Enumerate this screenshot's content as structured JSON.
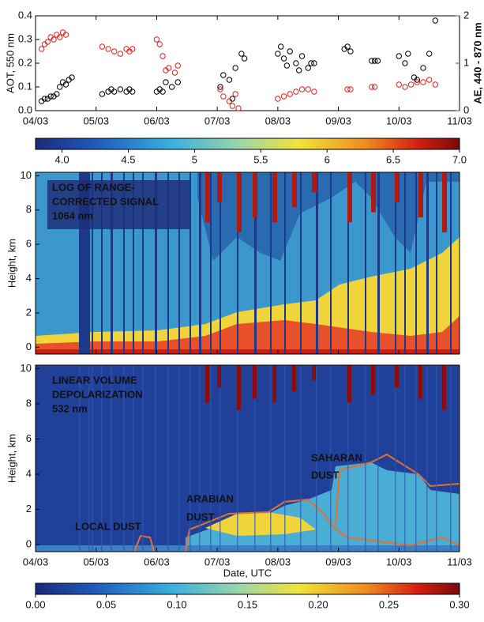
{
  "chart_data": [
    {
      "type": "scatter",
      "ylabel": "AOT, 550 nm",
      "y2label": "AE, 440 - 870 nm",
      "xlim": [
        0,
        7
      ],
      "xticks": [
        {
          "value": 0,
          "label": "04/03"
        },
        {
          "value": 1,
          "label": "05/03"
        },
        {
          "value": 2,
          "label": "06/03"
        },
        {
          "value": 3,
          "label": "07/03"
        },
        {
          "value": 4,
          "label": "08/03"
        },
        {
          "value": 5,
          "label": "09/03"
        },
        {
          "value": 6,
          "label": "10/03"
        },
        {
          "value": 7,
          "label": "11/03"
        }
      ],
      "ylim": [
        0,
        0.4
      ],
      "yticks": [
        {
          "value": 0,
          "label": "0.0"
        },
        0.1,
        0.2,
        0.3,
        0.4
      ],
      "y2lim": [
        0,
        2
      ],
      "y2ticks": [
        0,
        1,
        2
      ],
      "series": [
        {
          "color": "#000000",
          "x": [
            0.1,
            0.15,
            0.2,
            0.25,
            0.3,
            0.35,
            0.4,
            0.45,
            0.5,
            0.55,
            0.6,
            1.1,
            1.2,
            1.25,
            1.3,
            1.4,
            1.5,
            1.55,
            1.6,
            2.0,
            2.05,
            2.1,
            2.15,
            2.25,
            2.35,
            3.05,
            3.1,
            3.2,
            3.25,
            3.3,
            3.4,
            3.45,
            4.0,
            4.05,
            4.1,
            4.15,
            4.2,
            4.3,
            4.35,
            4.4,
            4.5,
            4.55,
            4.6,
            5.1,
            5.15,
            5.2,
            5.55,
            5.6,
            5.65,
            6.0,
            6.1,
            6.15,
            6.25,
            6.3,
            6.4,
            6.5,
            6.6
          ],
          "values": [
            0.04,
            0.05,
            0.05,
            0.06,
            0.06,
            0.07,
            0.1,
            0.12,
            0.11,
            0.13,
            0.14,
            0.07,
            0.08,
            0.09,
            0.08,
            0.09,
            0.08,
            0.09,
            0.08,
            0.08,
            0.09,
            0.08,
            0.12,
            0.1,
            0.12,
            0.1,
            0.15,
            0.13,
            0.05,
            0.18,
            0.24,
            0.22,
            0.24,
            0.27,
            0.22,
            0.19,
            0.25,
            0.2,
            0.17,
            0.23,
            0.18,
            0.2,
            0.2,
            0.26,
            0.27,
            0.25,
            0.21,
            0.21,
            0.21,
            0.23,
            0.2,
            0.24,
            0.14,
            0.13,
            0.18,
            0.24,
            0.38
          ]
        },
        {
          "color": "#e02020",
          "axis": "y2",
          "x": [
            0.1,
            0.15,
            0.2,
            0.25,
            0.3,
            0.35,
            0.4,
            0.45,
            0.5,
            1.1,
            1.2,
            1.3,
            1.4,
            1.5,
            1.55,
            1.6,
            2.0,
            2.05,
            2.1,
            2.15,
            2.2,
            2.3,
            2.35,
            3.05,
            3.1,
            3.2,
            3.25,
            3.3,
            3.35,
            4.0,
            4.1,
            4.2,
            4.3,
            4.4,
            4.5,
            4.6,
            5.15,
            5.2,
            5.55,
            5.6,
            6.0,
            6.1,
            6.2,
            6.3,
            6.4,
            6.5,
            6.6
          ],
          "values": [
            1.3,
            1.4,
            1.45,
            1.55,
            1.5,
            1.6,
            1.55,
            1.65,
            1.6,
            1.35,
            1.3,
            1.25,
            1.2,
            1.3,
            1.25,
            1.3,
            1.5,
            1.4,
            1.15,
            0.85,
            0.9,
            0.8,
            0.95,
            0.45,
            0.3,
            0.2,
            0.1,
            0.35,
            0.05,
            0.25,
            0.3,
            0.35,
            0.4,
            0.45,
            0.45,
            0.4,
            0.45,
            0.45,
            0.5,
            0.5,
            0.55,
            0.5,
            0.55,
            0.6,
            0.6,
            0.65,
            0.55
          ]
        }
      ]
    },
    {
      "type": "colorbar",
      "lim": [
        3.8,
        7.0
      ],
      "ticks": [
        {
          "value": 4,
          "label": "4.0"
        },
        4.5,
        5,
        5.5,
        6,
        6.5,
        {
          "value": 7,
          "label": "7.0"
        }
      ]
    },
    {
      "type": "heatmap",
      "ylabel": "Height, km",
      "annotation": [
        "LOG OF RANGE-",
        "CORRECTED SIGNAL",
        "1064 nm"
      ],
      "xlim": [
        0,
        7
      ],
      "xticks": [
        0,
        1,
        2,
        3,
        4,
        5,
        6,
        7
      ],
      "ylim": [
        -0.4,
        10.2
      ],
      "yticks": [
        0,
        2,
        4,
        6,
        8,
        10
      ]
    },
    {
      "type": "heatmap",
      "ylabel": "Height, km",
      "xlabel": "Date, UTC",
      "annotation": [
        "LINEAR VOLUME",
        "DEPOLARIZATION",
        "532 nm"
      ],
      "labels": [
        "LOCAL DUST",
        "ARABIAN",
        "DUST",
        "SAHARAN",
        "DUST"
      ],
      "xlim": [
        0,
        7
      ],
      "xticks": [
        {
          "value": 0,
          "label": "04/03"
        },
        {
          "value": 1,
          "label": "05/03"
        },
        {
          "value": 2,
          "label": "06/03"
        },
        {
          "value": 3,
          "label": "07/03"
        },
        {
          "value": 4,
          "label": "08/03"
        },
        {
          "value": 5,
          "label": "09/03"
        },
        {
          "value": 6,
          "label": "10/03"
        },
        {
          "value": 7,
          "label": "11/03"
        }
      ],
      "ylim": [
        -0.4,
        10.2
      ],
      "yticks": [
        0,
        2,
        4,
        6,
        8,
        10
      ]
    },
    {
      "type": "colorbar",
      "lim": [
        0,
        0.3
      ],
      "ticks": [
        {
          "value": 0,
          "label": "0.00"
        },
        {
          "value": 0.05,
          "label": "0.05"
        },
        {
          "value": 0.1,
          "label": "0.10"
        },
        {
          "value": 0.15,
          "label": "0.15"
        },
        {
          "value": 0.2,
          "label": "0.20"
        },
        {
          "value": 0.25,
          "label": "0.25"
        },
        {
          "value": 0.3,
          "label": "0.30"
        }
      ]
    }
  ]
}
